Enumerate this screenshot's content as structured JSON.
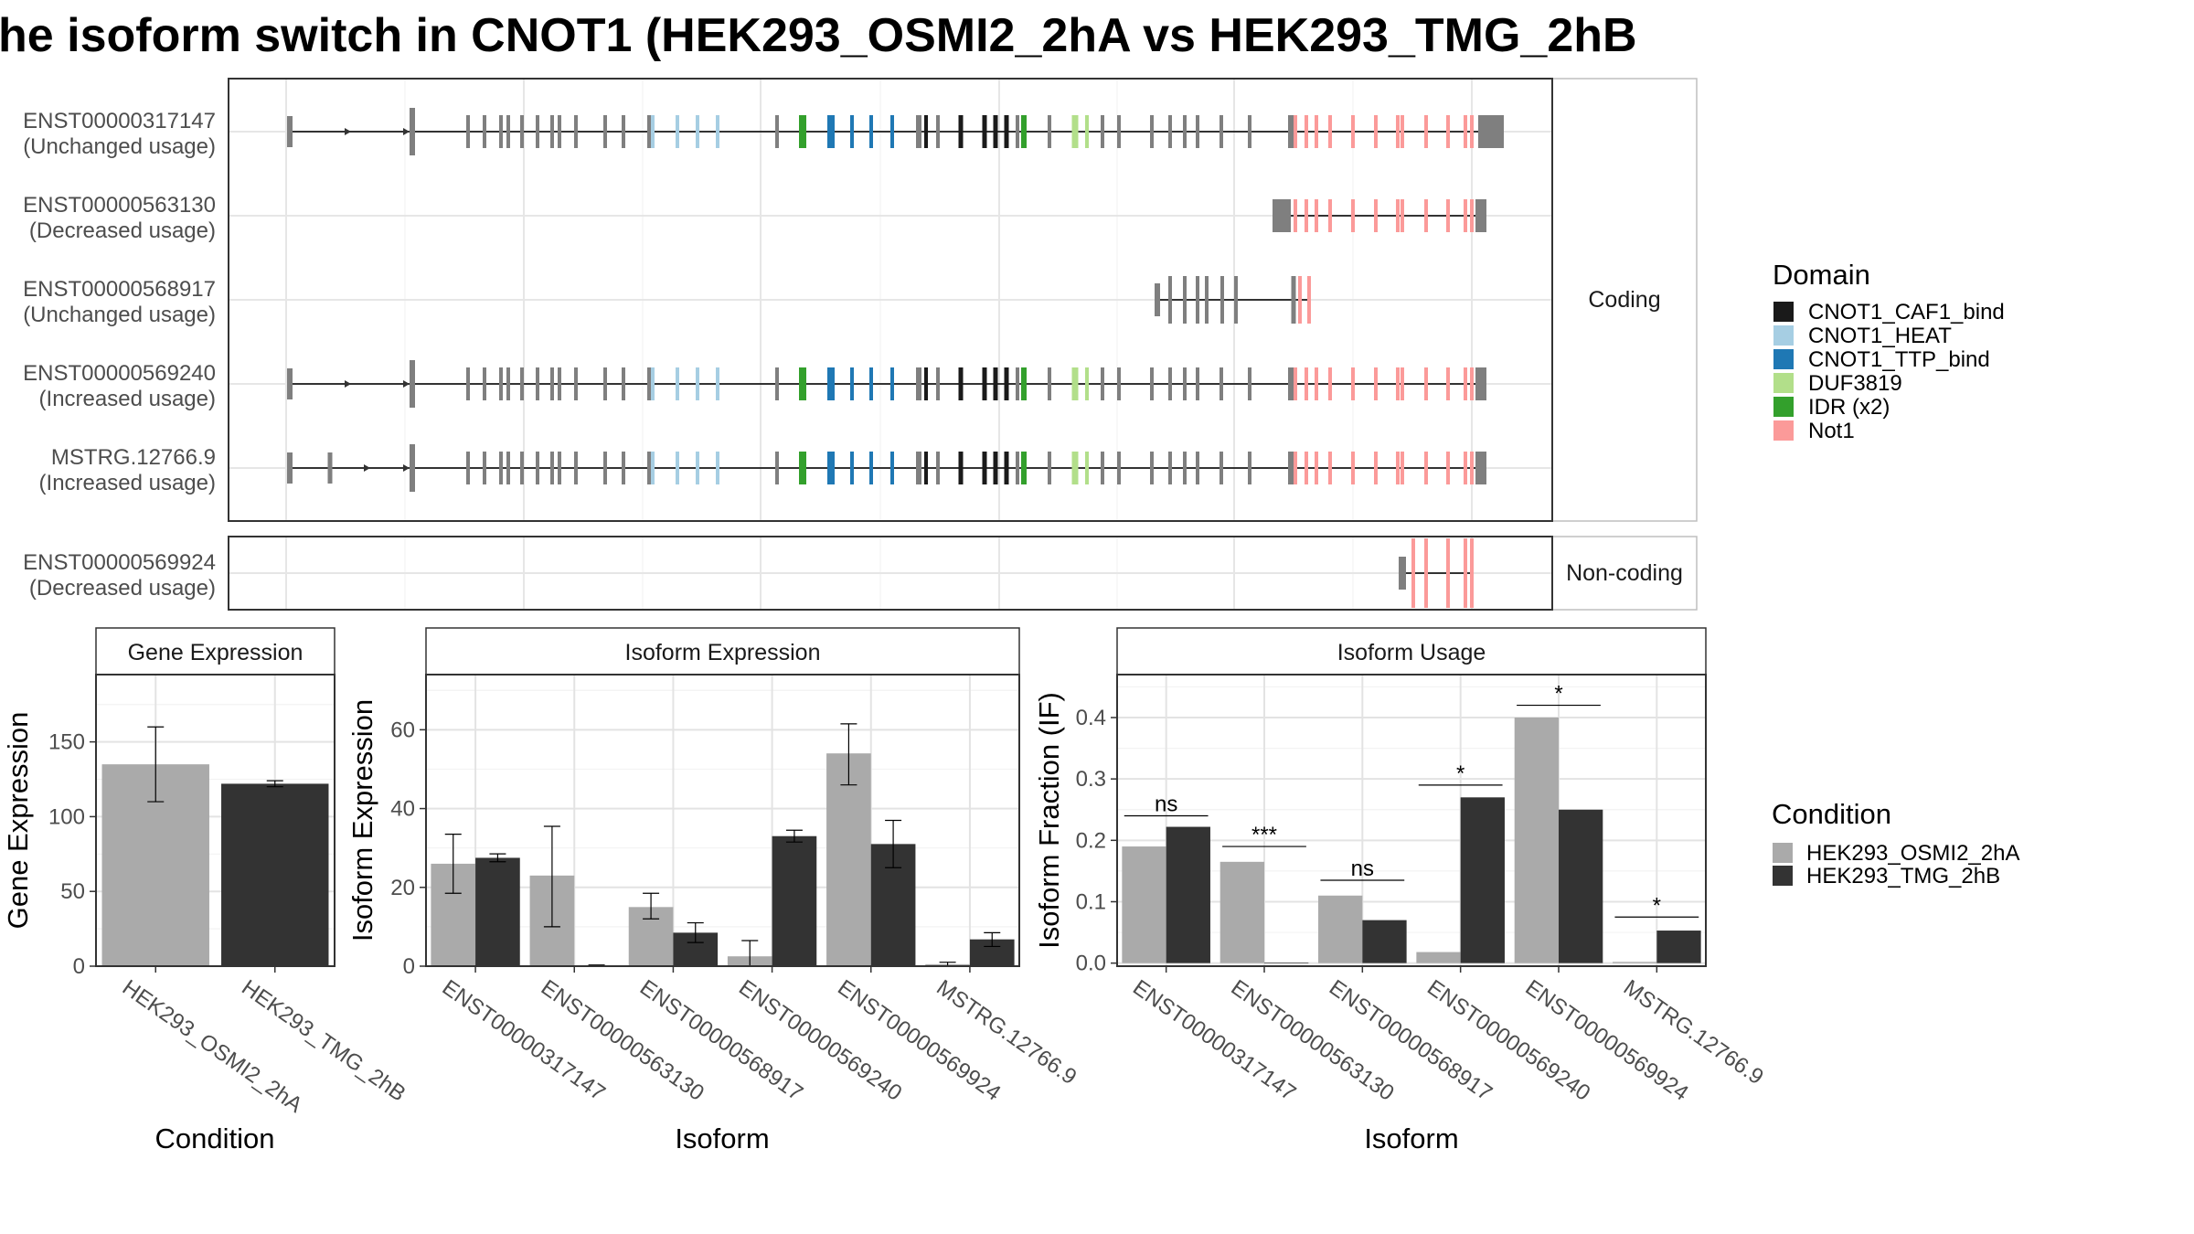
{
  "title": "he isoform switch in CNOT1 (HEK293_OSMI2_2hA vs HEK293_TMG_2hB",
  "colors": {
    "CNOT1_CAF1_bind": "#1a1a1a",
    "CNOT1_HEAT": "#a6cee3",
    "CNOT1_TTP_bind": "#1f78b4",
    "DUF3819": "#b2df8a",
    "IDR (x2)": "#33a02c",
    "Not1": "#fb9a99",
    "exon": "#7f7f7f",
    "cond_a": "#aaaaaa",
    "cond_b": "#333333"
  },
  "structure": {
    "strips": [
      "Coding",
      "Non-coding"
    ],
    "coding": [
      {
        "id": "ENST00000317147",
        "usage": "(Unchanged usage)"
      },
      {
        "id": "ENST00000563130",
        "usage": "(Decreased usage)"
      },
      {
        "id": "ENST00000568917",
        "usage": "(Unchanged usage)"
      },
      {
        "id": "ENST00000569240",
        "usage": "(Increased usage)"
      },
      {
        "id": "MSTRG.12766.9",
        "usage": "(Increased usage)"
      }
    ],
    "noncoding": [
      {
        "id": "ENST00000569924",
        "usage": "(Decreased usage)"
      }
    ]
  },
  "legend_domain": {
    "title": "Domain",
    "entries": [
      "CNOT1_CAF1_bind",
      "CNOT1_HEAT",
      "CNOT1_TTP_bind",
      "DUF3819",
      "IDR (x2)",
      "Not1"
    ]
  },
  "legend_condition": {
    "title": "Condition",
    "entries": [
      "HEK293_OSMI2_2hA",
      "HEK293_TMG_2hB"
    ]
  },
  "chart_data": [
    {
      "type": "bar",
      "title": "Gene Expression",
      "xlabel": "Condition",
      "ylabel": "Gene Expression",
      "ylim": [
        0,
        195
      ],
      "yticks": [
        0,
        50,
        100,
        150
      ],
      "categories": [
        "HEK293_OSMI2_2hA",
        "HEK293_TMG_2hB"
      ],
      "series": [
        {
          "name": "HEK293_OSMI2_2hA",
          "values": [
            135,
            null
          ],
          "err": [
            [
              110,
              160
            ],
            null
          ]
        },
        {
          "name": "HEK293_TMG_2hB",
          "values": [
            null,
            122
          ],
          "err": [
            null,
            [
              120,
              124
            ]
          ]
        }
      ]
    },
    {
      "type": "bar",
      "title": "Isoform Expression",
      "xlabel": "Isoform",
      "ylabel": "Isoform Expression",
      "ylim": [
        0,
        74
      ],
      "yticks": [
        0,
        20,
        40,
        60
      ],
      "categories": [
        "ENST00000317147",
        "ENST00000563130",
        "ENST00000568917",
        "ENST00000569240",
        "ENST00000569924",
        "MSTRG.12766.9"
      ],
      "series": [
        {
          "name": "HEK293_OSMI2_2hA",
          "values": [
            26,
            23,
            15,
            2.5,
            54,
            0.5
          ],
          "err": [
            [
              18.5,
              33.5
            ],
            [
              10,
              35.5
            ],
            [
              12,
              18.5
            ],
            [
              0,
              6.5
            ],
            [
              46,
              61.5
            ],
            [
              0,
              1
            ]
          ]
        },
        {
          "name": "HEK293_TMG_2hB",
          "values": [
            27.5,
            0.2,
            8.5,
            33,
            31,
            6.8
          ],
          "err": [
            [
              26.5,
              28.5
            ],
            [
              0,
              0.3
            ],
            [
              6,
              11
            ],
            [
              31.5,
              34.5
            ],
            [
              25,
              37
            ],
            [
              5,
              8.5
            ]
          ]
        }
      ]
    },
    {
      "type": "bar",
      "title": "Isoform Usage",
      "xlabel": "Isoform",
      "ylabel": "Isoform Fraction (IF)",
      "ylim": [
        -0.005,
        0.47
      ],
      "yticks": [
        0.0,
        0.1,
        0.2,
        0.3,
        0.4
      ],
      "ytick_labels": [
        "0.0",
        "0.1",
        "0.2",
        "0.3",
        "0.4"
      ],
      "categories": [
        "ENST00000317147",
        "ENST00000563130",
        "ENST00000568917",
        "ENST00000569240",
        "ENST00000569924",
        "MSTRG.12766.9"
      ],
      "series": [
        {
          "name": "HEK293_OSMI2_2hA",
          "values": [
            0.19,
            0.165,
            0.11,
            0.018,
            0.4,
            0.002
          ]
        },
        {
          "name": "HEK293_TMG_2hB",
          "values": [
            0.222,
            0.001,
            0.07,
            0.27,
            0.25,
            0.053
          ]
        }
      ],
      "significance": [
        "ns",
        "***",
        "ns",
        "*",
        "*",
        "*"
      ],
      "significance_y": [
        0.24,
        0.19,
        0.135,
        0.29,
        0.42,
        0.075
      ]
    }
  ]
}
